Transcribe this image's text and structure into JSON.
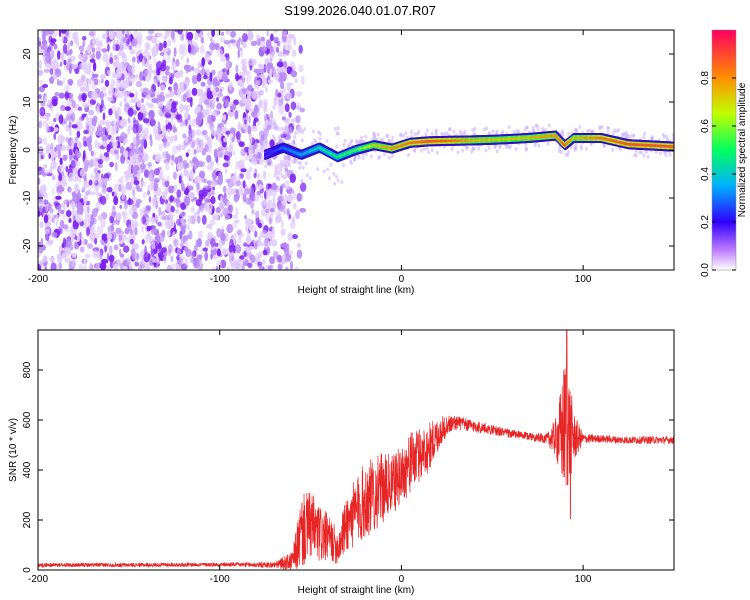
{
  "title": "S199.2026.040.01.07.R07",
  "colors": {
    "snr_line": "#e82525",
    "axis": "#000000"
  },
  "chart_data": [
    {
      "type": "heatmap",
      "name": "spectrogram",
      "xlabel": "Height of straight line (km)",
      "ylabel": "Frequency (Hz)",
      "xlim": [
        -200,
        150
      ],
      "ylim": [
        -25,
        25
      ],
      "xticks": [
        -200,
        -100,
        0,
        100
      ],
      "yticks": [
        -20,
        -10,
        0,
        10,
        20
      ],
      "xtick_labels": [
        "-200",
        "-100",
        "0",
        "100"
      ],
      "ytick_labels": [
        "-20",
        "-10",
        "0",
        "10",
        "20"
      ],
      "colorbar": {
        "label": "Normalized spectral amplitude",
        "range": [
          0,
          1
        ],
        "ticks": [
          0.0,
          0.2,
          0.4,
          0.6,
          0.8
        ],
        "tick_labels": [
          "0.0",
          "0.2",
          "0.4",
          "0.6",
          "0.8"
        ]
      },
      "noise_region_km": [
        -200,
        -65
      ],
      "signal_trace": {
        "heights_km": [
          -75,
          -65,
          -55,
          -45,
          -35,
          -25,
          -15,
          -5,
          5,
          15,
          25,
          40,
          55,
          70,
          85,
          90,
          95,
          110,
          125,
          150
        ],
        "frequency_hz": [
          -1,
          0.5,
          -1,
          0.5,
          -1.5,
          0,
          1,
          0.3,
          1.5,
          1.8,
          1.9,
          2.0,
          2.2,
          2.5,
          3,
          1,
          2.5,
          2.5,
          1.2,
          0.7
        ],
        "amplitude": [
          0.2,
          0.3,
          0.35,
          0.45,
          0.5,
          0.55,
          0.7,
          0.8,
          0.85,
          0.9,
          0.88,
          0.75,
          0.72,
          0.74,
          0.8,
          0.9,
          0.72,
          0.85,
          0.9,
          0.9
        ]
      }
    },
    {
      "type": "line",
      "name": "snr",
      "xlabel": "Height of straight line (km)",
      "ylabel": "SNR (10 * v/v)",
      "xlim": [
        -200,
        150
      ],
      "ylim": [
        0,
        960
      ],
      "xticks": [
        -200,
        -100,
        0,
        100
      ],
      "yticks": [
        0,
        200,
        400,
        600,
        800
      ],
      "xtick_labels": [
        "-200",
        "-100",
        "0",
        "100"
      ],
      "ytick_labels": [
        "0",
        "200",
        "400",
        "600",
        "800"
      ],
      "envelope": {
        "heights_km": [
          -200,
          -150,
          -100,
          -70,
          -60,
          -55,
          -50,
          -45,
          -40,
          -35,
          -30,
          -25,
          -20,
          -15,
          -10,
          -5,
          0,
          5,
          10,
          15,
          20,
          25,
          30,
          40,
          50,
          60,
          70,
          80,
          85,
          88,
          90,
          92,
          95,
          100,
          110,
          120,
          130,
          150
        ],
        "baseline": [
          20,
          20,
          22,
          20,
          35,
          150,
          180,
          140,
          130,
          90,
          190,
          230,
          280,
          300,
          330,
          340,
          380,
          430,
          460,
          490,
          540,
          580,
          590,
          575,
          560,
          545,
          535,
          525,
          530,
          540,
          580,
          560,
          530,
          525,
          525,
          520,
          520,
          520
        ],
        "amplitude": [
          8,
          8,
          8,
          12,
          40,
          150,
          140,
          120,
          90,
          70,
          120,
          140,
          160,
          150,
          140,
          120,
          120,
          120,
          110,
          100,
          70,
          40,
          30,
          25,
          20,
          18,
          15,
          20,
          80,
          200,
          280,
          240,
          100,
          20,
          15,
          15,
          15,
          15
        ]
      },
      "peak": {
        "height_km": 91,
        "snr": 960
      },
      "trough": {
        "height_km": 93,
        "snr": 205
      }
    }
  ]
}
